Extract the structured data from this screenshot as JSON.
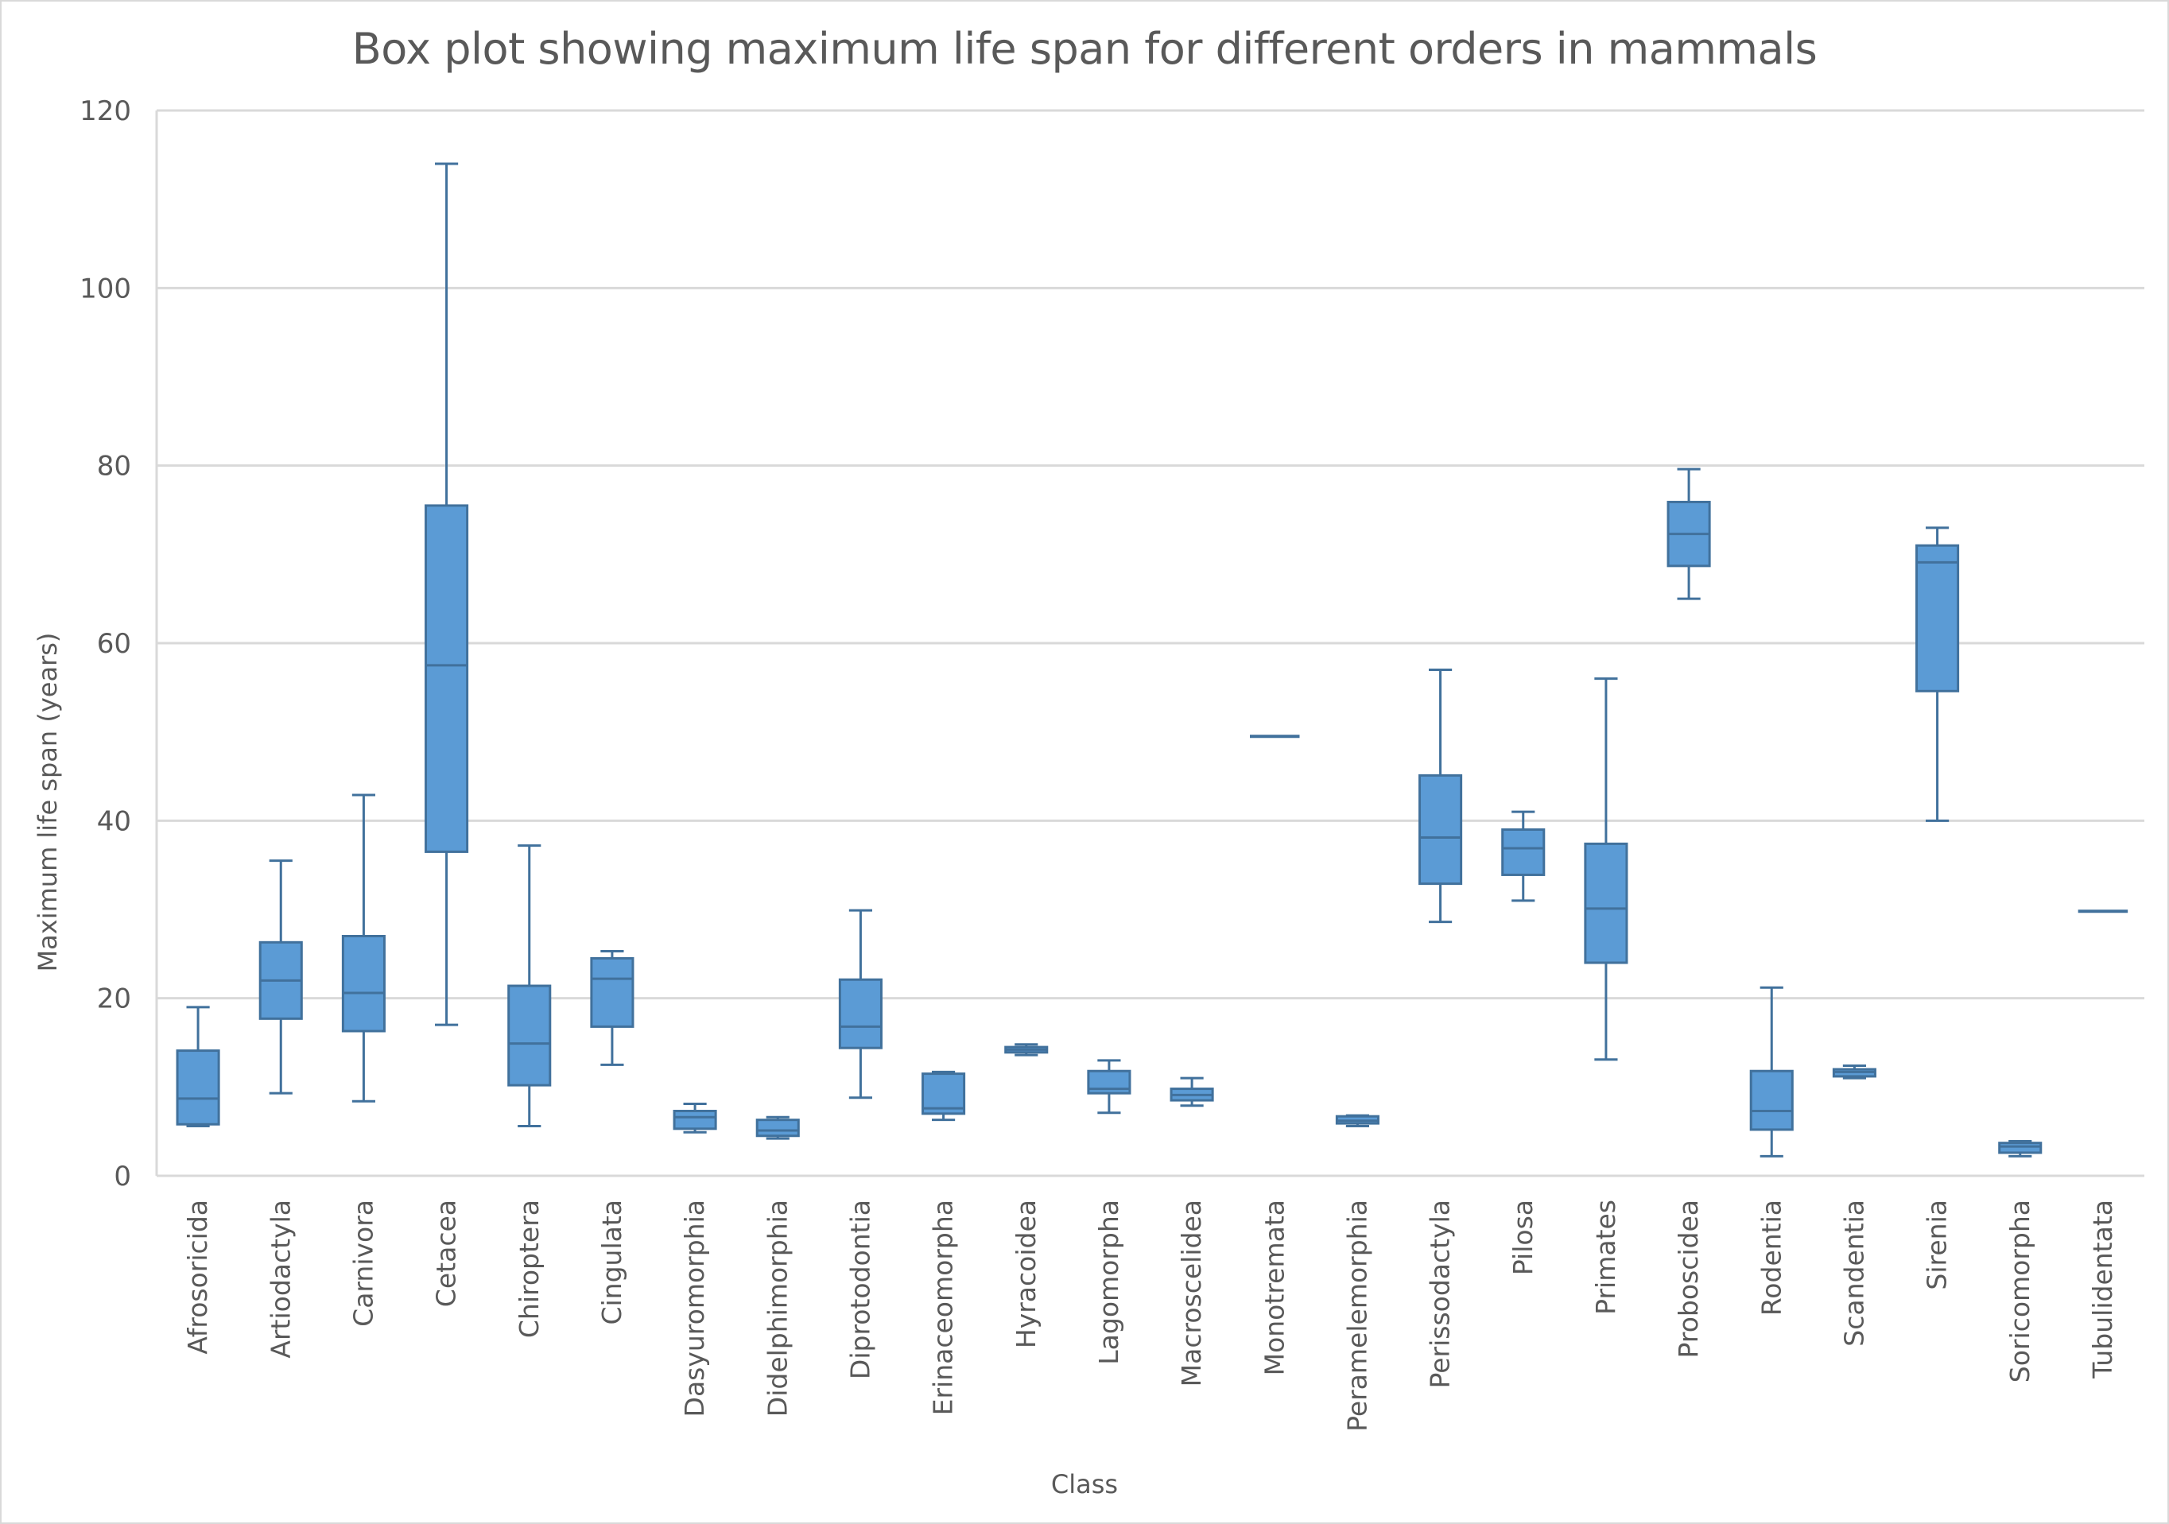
{
  "chart_data": {
    "type": "box",
    "title": "Box plot showing maximum life span for different orders in mammals",
    "xlabel": "Class",
    "ylabel": "Maximum life span (years)",
    "ylim": [
      0,
      120
    ],
    "yticks": [
      0,
      20,
      40,
      60,
      80,
      100,
      120
    ],
    "grid": true,
    "legend": null,
    "color": "#5b9bd5",
    "edge_color": "#41719c",
    "categories": [
      "Afrosoricida",
      "Artiodactyla",
      "Carnivora",
      "Cetacea",
      "Chiroptera",
      "Cingulata",
      "Dasyuromorphia",
      "Didelphimorphia",
      "Diprotodontia",
      "Erinaceomorpha",
      "Hyracoidea",
      "Lagomorpha",
      "Macroscelidea",
      "Monotremata",
      "Peramelemorphia",
      "Perissodactyla",
      "Pilosa",
      "Primates",
      "Proboscidea",
      "Rodentia",
      "Scandentia",
      "Sirenia",
      "Soricomorpha",
      "Tubulidentata"
    ],
    "boxes": [
      {
        "name": "Afrosoricida",
        "min": 5.6,
        "q1": 5.8,
        "median": 8.7,
        "q3": 14.1,
        "max": 19.0
      },
      {
        "name": "Artiodactyla",
        "min": 9.3,
        "q1": 17.7,
        "median": 22.0,
        "q3": 26.3,
        "max": 35.5
      },
      {
        "name": "Carnivora",
        "min": 8.4,
        "q1": 16.3,
        "median": 20.6,
        "q3": 27.0,
        "max": 42.9
      },
      {
        "name": "Cetacea",
        "min": 17.0,
        "q1": 36.5,
        "median": 57.5,
        "q3": 75.5,
        "max": 114.0
      },
      {
        "name": "Chiroptera",
        "min": 5.6,
        "q1": 10.2,
        "median": 14.9,
        "q3": 21.4,
        "max": 37.2
      },
      {
        "name": "Cingulata",
        "min": 12.5,
        "q1": 16.8,
        "median": 22.2,
        "q3": 24.5,
        "max": 25.3
      },
      {
        "name": "Dasyuromorphia",
        "min": 4.9,
        "q1": 5.3,
        "median": 6.6,
        "q3": 7.3,
        "max": 8.1
      },
      {
        "name": "Didelphimorphia",
        "min": 4.2,
        "q1": 4.5,
        "median": 5.1,
        "q3": 6.3,
        "max": 6.6
      },
      {
        "name": "Diprotodontia",
        "min": 8.8,
        "q1": 14.4,
        "median": 16.8,
        "q3": 22.1,
        "max": 29.9
      },
      {
        "name": "Erinaceomorpha",
        "min": 6.3,
        "q1": 7.0,
        "median": 7.6,
        "q3": 11.5,
        "max": 11.7
      },
      {
        "name": "Hyracoidea",
        "min": 13.6,
        "q1": 13.9,
        "median": 14.2,
        "q3": 14.5,
        "max": 14.8
      },
      {
        "name": "Lagomorpha",
        "min": 7.1,
        "q1": 9.3,
        "median": 9.8,
        "q3": 11.8,
        "max": 13.0
      },
      {
        "name": "Macroscelidea",
        "min": 7.9,
        "q1": 8.5,
        "median": 9.1,
        "q3": 9.8,
        "max": 11.0
      },
      {
        "name": "Monotremata",
        "min": 49.5,
        "q1": 49.5,
        "median": 49.5,
        "q3": 49.5,
        "max": 49.5
      },
      {
        "name": "Peramelemorphia",
        "min": 5.6,
        "q1": 5.9,
        "median": 6.2,
        "q3": 6.7,
        "max": 6.8
      },
      {
        "name": "Perissodactyla",
        "min": 28.6,
        "q1": 32.9,
        "median": 38.1,
        "q3": 45.1,
        "max": 57.0
      },
      {
        "name": "Pilosa",
        "min": 31.0,
        "q1": 33.9,
        "median": 36.9,
        "q3": 39.0,
        "max": 41.0
      },
      {
        "name": "Primates",
        "min": 13.1,
        "q1": 24.0,
        "median": 30.1,
        "q3": 37.4,
        "max": 56.0
      },
      {
        "name": "Proboscidea",
        "min": 65.0,
        "q1": 68.7,
        "median": 72.3,
        "q3": 75.9,
        "max": 79.6
      },
      {
        "name": "Rodentia",
        "min": 2.2,
        "q1": 5.2,
        "median": 7.3,
        "q3": 11.8,
        "max": 21.2
      },
      {
        "name": "Scandentia",
        "min": 11.0,
        "q1": 11.2,
        "median": 11.7,
        "q3": 12.0,
        "max": 12.4
      },
      {
        "name": "Sirenia",
        "min": 40.0,
        "q1": 54.6,
        "median": 69.1,
        "q3": 71.0,
        "max": 73.0
      },
      {
        "name": "Soricomorpha",
        "min": 2.2,
        "q1": 2.6,
        "median": 3.3,
        "q3": 3.7,
        "max": 3.9
      },
      {
        "name": "Tubulidentata",
        "min": 29.8,
        "q1": 29.8,
        "median": 29.8,
        "q3": 29.8,
        "max": 29.8
      }
    ]
  }
}
